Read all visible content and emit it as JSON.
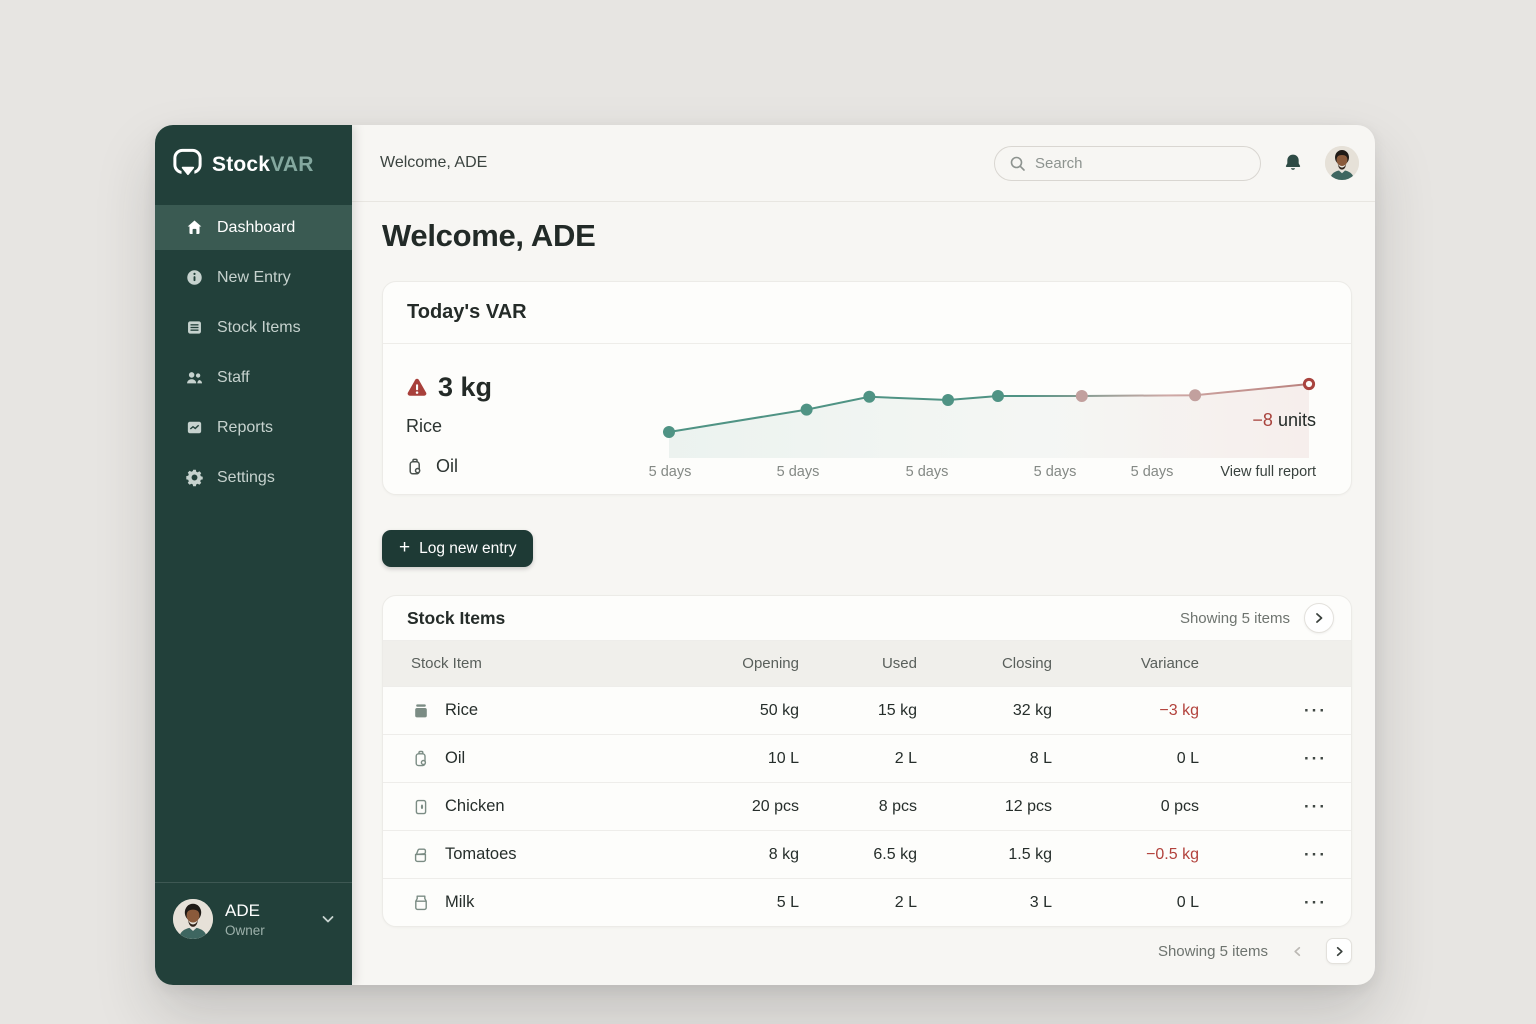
{
  "sidebar": {
    "logo": {
      "part1": "Stock",
      "part2": "VAR"
    },
    "items": [
      {
        "label": "Dashboard",
        "icon": "home",
        "active": true
      },
      {
        "label": "New Entry",
        "icon": "info",
        "active": false
      },
      {
        "label": "Stock Items",
        "icon": "list",
        "active": false
      },
      {
        "label": "Staff",
        "icon": "people",
        "active": false
      },
      {
        "label": "Reports",
        "icon": "report",
        "active": false
      },
      {
        "label": "Settings",
        "icon": "gear",
        "active": false
      }
    ],
    "user": {
      "name": "ADE",
      "role": "Owner"
    }
  },
  "topbar": {
    "welcome": "Welcome, ADE",
    "search_placeholder": "Search"
  },
  "main": {
    "heading": "Welcome, ADE",
    "var_card": {
      "title": "Today's VAR",
      "alert_value": "3 kg",
      "alert_item": "Rice",
      "secondary_item": "Oil",
      "delta_value": "−8",
      "delta_unit": "units",
      "x_labels": [
        "5 days",
        "5 days",
        "5 days",
        "5 days",
        "5 days"
      ],
      "link": "View full report"
    },
    "log_button": "Log new entry",
    "stock_card": {
      "title": "Stock Items",
      "showing": "Showing 5 items",
      "columns": [
        "Stock Item",
        "Opening",
        "Used",
        "Closing",
        "Variance"
      ],
      "rows": [
        {
          "icon": "rice",
          "name": "Rice",
          "opening": "50 kg",
          "used": "15 kg",
          "closing": "32 kg",
          "variance": "−3 kg",
          "negative": true
        },
        {
          "icon": "oil",
          "name": "Oil",
          "opening": "10 L",
          "used": "2 L",
          "closing": "8 L",
          "variance": "0 L",
          "negative": false
        },
        {
          "icon": "chicken",
          "name": "Chicken",
          "opening": "20 pcs",
          "used": "8 pcs",
          "closing": "12 pcs",
          "variance": "0 pcs",
          "negative": false
        },
        {
          "icon": "tomatoes",
          "name": "Tomatoes",
          "opening": "8 kg",
          "used": "6.5 kg",
          "closing": "1.5 kg",
          "variance": "−0.5 kg",
          "negative": true
        },
        {
          "icon": "milk",
          "name": "Milk",
          "opening": "5 L",
          "used": "2 L",
          "closing": "3 L",
          "variance": "0 L",
          "negative": false
        }
      ]
    },
    "footer": {
      "showing": "Showing 5 items"
    }
  },
  "chart_data": {
    "type": "line",
    "title": "Today's VAR trend",
    "x_tick_labels": [
      "5 days",
      "5 days",
      "5 days",
      "5 days",
      "5 days"
    ],
    "annotation": "−8 units",
    "axes_visible": false,
    "series": [
      {
        "name": "variance-trend",
        "x_norm": [
          0,
          0.215,
          0.313,
          0.436,
          0.514,
          0.645,
          0.822,
          1.0
        ],
        "y_norm": [
          0.25,
          0.53,
          0.69,
          0.65,
          0.7,
          0.7,
          0.71,
          0.85
        ],
        "point_styles": [
          "teal",
          "teal",
          "teal",
          "teal",
          "teal",
          "pink",
          "pink",
          "red-open"
        ]
      }
    ],
    "colors": {
      "teal": "#4f9384",
      "pink": "#c2a09e",
      "red": "#a8433e"
    }
  }
}
